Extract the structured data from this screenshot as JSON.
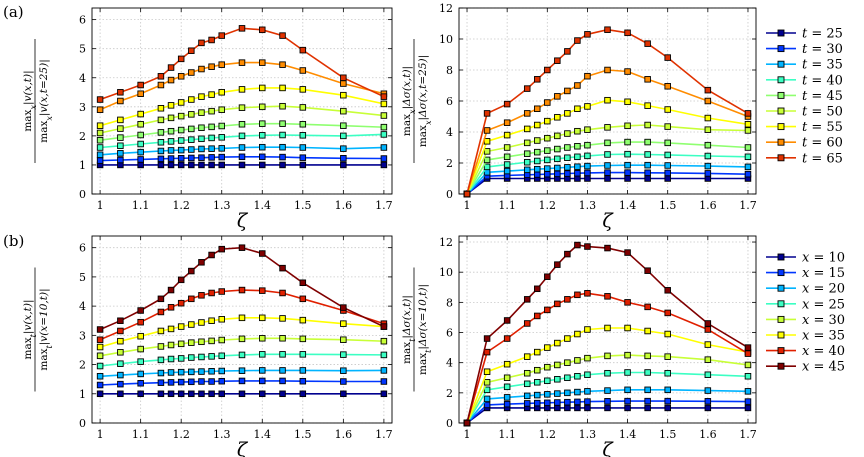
{
  "figure": {
    "panel_labels": [
      "(a)",
      "(b)"
    ]
  },
  "chart_data": [
    {
      "type": "line",
      "panel": "a-left",
      "xlabel": "ζ",
      "ylabel_num": "max_x|v(x,t)|",
      "ylabel_den": "max_x|v(x,t=25)|",
      "xlim": [
        0.98,
        1.72
      ],
      "ylim": [
        0,
        6.4
      ],
      "xticks": [
        1,
        1.1,
        1.2,
        1.3,
        1.4,
        1.5,
        1.6,
        1.7
      ],
      "xtick_labels": [
        "1",
        "1.1",
        "1.2",
        "1.3",
        "1.4",
        "1.5",
        "1.6",
        "1.7"
      ],
      "yticks": [
        0,
        1,
        2,
        3,
        4,
        5,
        6
      ],
      "ytick_labels": [
        "0",
        "1",
        "2",
        "3",
        "4",
        "5",
        "6"
      ],
      "grid": true,
      "x": [
        1,
        1.05,
        1.1,
        1.15,
        1.175,
        1.2,
        1.225,
        1.25,
        1.275,
        1.3,
        1.35,
        1.4,
        1.45,
        1.5,
        1.6,
        1.7
      ],
      "series": [
        {
          "name": "t=25",
          "color": "#00008f",
          "values": [
            1,
            1,
            1,
            1,
            1,
            1,
            1,
            1,
            1,
            1,
            1,
            1,
            1,
            1,
            1,
            1
          ]
        },
        {
          "name": "t=30",
          "color": "#0036ff",
          "values": [
            1.15,
            1.17,
            1.19,
            1.21,
            1.22,
            1.23,
            1.24,
            1.25,
            1.26,
            1.27,
            1.28,
            1.28,
            1.27,
            1.25,
            1.23,
            1.22
          ]
        },
        {
          "name": "t=35",
          "color": "#00b4ff",
          "values": [
            1.35,
            1.4,
            1.44,
            1.48,
            1.5,
            1.51,
            1.53,
            1.55,
            1.56,
            1.57,
            1.6,
            1.61,
            1.61,
            1.6,
            1.56,
            1.6
          ]
        },
        {
          "name": "t=40",
          "color": "#3cffc3",
          "values": [
            1.6,
            1.66,
            1.72,
            1.78,
            1.81,
            1.84,
            1.87,
            1.9,
            1.93,
            1.95,
            2.0,
            2.02,
            2.03,
            2.02,
            2.0,
            2.05
          ]
        },
        {
          "name": "t=45",
          "color": "#8fff70",
          "values": [
            1.85,
            1.94,
            2.03,
            2.12,
            2.16,
            2.2,
            2.24,
            2.28,
            2.31,
            2.34,
            2.4,
            2.42,
            2.42,
            2.4,
            2.35,
            2.3
          ]
        },
        {
          "name": "t=50",
          "color": "#c8ff37",
          "values": [
            2.1,
            2.25,
            2.4,
            2.55,
            2.62,
            2.68,
            2.74,
            2.8,
            2.85,
            2.9,
            2.97,
            3.0,
            3.02,
            2.98,
            2.85,
            2.7
          ]
        },
        {
          "name": "t=55",
          "color": "#ffff00",
          "values": [
            2.35,
            2.55,
            2.75,
            2.95,
            3.05,
            3.15,
            3.25,
            3.35,
            3.42,
            3.5,
            3.6,
            3.65,
            3.65,
            3.6,
            3.4,
            3.1
          ]
        },
        {
          "name": "t=60",
          "color": "#ff8c00",
          "values": [
            2.9,
            3.2,
            3.45,
            3.75,
            3.92,
            4.05,
            4.18,
            4.3,
            4.38,
            4.45,
            4.52,
            4.52,
            4.45,
            4.25,
            3.8,
            3.45
          ]
        },
        {
          "name": "t=65",
          "color": "#e03200",
          "values": [
            3.25,
            3.5,
            3.75,
            4.05,
            4.35,
            4.65,
            4.93,
            5.2,
            5.3,
            5.45,
            5.7,
            5.65,
            5.45,
            4.95,
            4.0,
            3.35
          ]
        }
      ]
    },
    {
      "type": "line",
      "panel": "a-right",
      "xlabel": "ζ",
      "ylabel_num": "max_x|Δσ(x,t)|",
      "ylabel_den": "max_x|Δσ(x,t=25)|",
      "xlim": [
        0.98,
        1.72
      ],
      "ylim": [
        0,
        12
      ],
      "xticks": [
        1,
        1.1,
        1.2,
        1.3,
        1.4,
        1.5,
        1.6,
        1.7
      ],
      "xtick_labels": [
        "1",
        "1.1",
        "1.2",
        "1.3",
        "1.4",
        "1.5",
        "1.6",
        "1.7"
      ],
      "yticks": [
        0,
        2,
        4,
        6,
        8,
        10,
        12
      ],
      "ytick_labels": [
        "0",
        "2",
        "4",
        "6",
        "8",
        "10",
        "12"
      ],
      "grid": true,
      "x": [
        1,
        1.05,
        1.1,
        1.15,
        1.175,
        1.2,
        1.225,
        1.25,
        1.275,
        1.3,
        1.35,
        1.4,
        1.45,
        1.5,
        1.6,
        1.7
      ],
      "series": [
        {
          "name": "t=25",
          "color": "#00008f",
          "values": [
            0,
            1,
            1,
            1,
            1,
            1,
            1,
            1,
            1,
            1,
            1,
            1,
            1,
            1,
            1,
            1
          ]
        },
        {
          "name": "t=30",
          "color": "#0036ff",
          "values": [
            0,
            1.15,
            1.2,
            1.24,
            1.26,
            1.28,
            1.3,
            1.32,
            1.34,
            1.36,
            1.38,
            1.38,
            1.37,
            1.36,
            1.33,
            1.28
          ]
        },
        {
          "name": "t=35",
          "color": "#00b4ff",
          "values": [
            0,
            1.4,
            1.48,
            1.56,
            1.6,
            1.64,
            1.68,
            1.72,
            1.76,
            1.8,
            1.84,
            1.86,
            1.86,
            1.84,
            1.8,
            1.75
          ]
        },
        {
          "name": "t=40",
          "color": "#3cffc3",
          "values": [
            0,
            1.75,
            1.9,
            2.05,
            2.13,
            2.2,
            2.27,
            2.34,
            2.4,
            2.46,
            2.55,
            2.57,
            2.55,
            2.52,
            2.45,
            2.4
          ]
        },
        {
          "name": "t=45",
          "color": "#8fff70",
          "values": [
            0,
            2.2,
            2.4,
            2.6,
            2.7,
            2.8,
            2.9,
            3.0,
            3.08,
            3.15,
            3.3,
            3.35,
            3.35,
            3.3,
            3.15,
            3.0
          ]
        },
        {
          "name": "t=50",
          "color": "#c8ff37",
          "values": [
            0,
            2.75,
            3.0,
            3.3,
            3.45,
            3.6,
            3.75,
            3.9,
            4.05,
            4.15,
            4.3,
            4.4,
            4.45,
            4.35,
            4.15,
            4.1
          ]
        },
        {
          "name": "t=55",
          "color": "#ffff00",
          "values": [
            0,
            3.4,
            3.8,
            4.2,
            4.45,
            4.7,
            4.95,
            5.2,
            5.5,
            5.65,
            6.05,
            5.95,
            5.7,
            5.45,
            4.9,
            4.5
          ]
        },
        {
          "name": "t=60",
          "color": "#ff8c00",
          "values": [
            0,
            4.1,
            4.6,
            5.2,
            5.5,
            5.9,
            6.3,
            6.65,
            7.0,
            7.6,
            8.0,
            7.9,
            7.4,
            6.95,
            6.0,
            5.0
          ]
        },
        {
          "name": "t=65",
          "color": "#e03200",
          "values": [
            0,
            5.2,
            5.8,
            6.8,
            7.4,
            8.0,
            8.6,
            9.2,
            9.9,
            10.3,
            10.6,
            10.4,
            9.7,
            8.8,
            6.7,
            5.2
          ]
        }
      ]
    },
    {
      "type": "line",
      "panel": "b-left",
      "xlabel": "ζ",
      "ylabel_num": "max_t|v(x,t)|",
      "ylabel_den": "max_t|v(x=10,t)|",
      "xlim": [
        0.98,
        1.72
      ],
      "ylim": [
        0,
        6.4
      ],
      "xticks": [
        1,
        1.1,
        1.2,
        1.3,
        1.4,
        1.5,
        1.6,
        1.7
      ],
      "xtick_labels": [
        "1",
        "1.1",
        "1.2",
        "1.3",
        "1.4",
        "1.5",
        "1.6",
        "1.7"
      ],
      "yticks": [
        0,
        1,
        2,
        3,
        4,
        5,
        6
      ],
      "ytick_labels": [
        "0",
        "1",
        "2",
        "3",
        "4",
        "5",
        "6"
      ],
      "grid": true,
      "x": [
        1,
        1.05,
        1.1,
        1.15,
        1.175,
        1.2,
        1.225,
        1.25,
        1.275,
        1.3,
        1.35,
        1.4,
        1.45,
        1.5,
        1.6,
        1.7
      ],
      "series": [
        {
          "name": "x=10",
          "color": "#00008f",
          "values": [
            1,
            1,
            1,
            1,
            1,
            1,
            1,
            1,
            1,
            1,
            1,
            1,
            1,
            1,
            1,
            1
          ]
        },
        {
          "name": "x=15",
          "color": "#0036ff",
          "values": [
            1.3,
            1.33,
            1.36,
            1.38,
            1.39,
            1.4,
            1.41,
            1.42,
            1.42,
            1.43,
            1.44,
            1.44,
            1.44,
            1.43,
            1.42,
            1.42
          ]
        },
        {
          "name": "x=20",
          "color": "#00b4ff",
          "values": [
            1.6,
            1.64,
            1.68,
            1.71,
            1.73,
            1.74,
            1.75,
            1.76,
            1.77,
            1.78,
            1.79,
            1.8,
            1.8,
            1.8,
            1.79,
            1.8
          ]
        },
        {
          "name": "x=25",
          "color": "#3cffc3",
          "values": [
            1.95,
            2.03,
            2.1,
            2.16,
            2.19,
            2.21,
            2.24,
            2.26,
            2.28,
            2.3,
            2.33,
            2.35,
            2.35,
            2.35,
            2.34,
            2.33
          ]
        },
        {
          "name": "x=30",
          "color": "#c8ff37",
          "values": [
            2.3,
            2.42,
            2.53,
            2.62,
            2.67,
            2.71,
            2.75,
            2.78,
            2.81,
            2.84,
            2.88,
            2.9,
            2.9,
            2.88,
            2.85,
            2.8
          ]
        },
        {
          "name": "x=35",
          "color": "#ffff00",
          "values": [
            2.6,
            2.8,
            2.97,
            3.15,
            3.22,
            3.3,
            3.37,
            3.44,
            3.5,
            3.55,
            3.6,
            3.6,
            3.58,
            3.52,
            3.4,
            3.3
          ]
        },
        {
          "name": "x=40",
          "color": "#e02000",
          "values": [
            2.85,
            3.15,
            3.45,
            3.8,
            3.96,
            4.1,
            4.25,
            4.37,
            4.45,
            4.5,
            4.55,
            4.53,
            4.45,
            4.25,
            3.85,
            3.4
          ]
        },
        {
          "name": "x=45",
          "color": "#800000",
          "values": [
            3.2,
            3.5,
            3.85,
            4.25,
            4.55,
            4.9,
            5.2,
            5.5,
            5.75,
            5.95,
            6.0,
            5.8,
            5.3,
            4.8,
            3.95,
            3.3
          ]
        }
      ]
    },
    {
      "type": "line",
      "panel": "b-right",
      "xlabel": "ζ",
      "ylabel_num": "max_t|Δσ(x,t)|",
      "ylabel_den": "max_t|Δσ(x=10,t)|",
      "xlim": [
        0.98,
        1.72
      ],
      "ylim": [
        0,
        12.4
      ],
      "xticks": [
        1,
        1.1,
        1.2,
        1.3,
        1.4,
        1.5,
        1.6,
        1.7
      ],
      "xtick_labels": [
        "1",
        "1.1",
        "1.2",
        "1.3",
        "1.4",
        "1.5",
        "1.6",
        "1.7"
      ],
      "yticks": [
        0,
        2,
        4,
        6,
        8,
        10,
        12
      ],
      "ytick_labels": [
        "0",
        "2",
        "4",
        "6",
        "8",
        "10",
        "12"
      ],
      "grid": true,
      "x": [
        1,
        1.05,
        1.1,
        1.15,
        1.175,
        1.2,
        1.225,
        1.25,
        1.275,
        1.3,
        1.35,
        1.4,
        1.45,
        1.5,
        1.6,
        1.7
      ],
      "series": [
        {
          "name": "x=10",
          "color": "#00008f",
          "values": [
            0,
            1,
            1,
            1,
            1,
            1,
            1,
            1,
            1,
            1,
            1,
            1,
            1,
            1,
            1,
            1
          ]
        },
        {
          "name": "x=15",
          "color": "#0036ff",
          "values": [
            0,
            1.2,
            1.25,
            1.3,
            1.32,
            1.34,
            1.36,
            1.38,
            1.4,
            1.42,
            1.44,
            1.45,
            1.45,
            1.45,
            1.44,
            1.42
          ]
        },
        {
          "name": "x=20",
          "color": "#00b4ff",
          "values": [
            0,
            1.6,
            1.7,
            1.8,
            1.85,
            1.9,
            1.95,
            2.0,
            2.05,
            2.1,
            2.15,
            2.2,
            2.2,
            2.2,
            2.15,
            2.1
          ]
        },
        {
          "name": "x=25",
          "color": "#3cffc3",
          "values": [
            0,
            2.2,
            2.4,
            2.6,
            2.7,
            2.8,
            2.9,
            3.0,
            3.1,
            3.2,
            3.3,
            3.35,
            3.35,
            3.3,
            3.2,
            3.1
          ]
        },
        {
          "name": "x=30",
          "color": "#c8ff37",
          "values": [
            0,
            2.7,
            3.0,
            3.3,
            3.5,
            3.7,
            3.85,
            4.0,
            4.15,
            4.3,
            4.45,
            4.5,
            4.45,
            4.4,
            4.2,
            3.85
          ]
        },
        {
          "name": "x=35",
          "color": "#ffff00",
          "values": [
            0,
            3.4,
            3.9,
            4.4,
            4.7,
            5.0,
            5.3,
            5.6,
            5.9,
            6.2,
            6.3,
            6.3,
            6.1,
            5.9,
            5.2,
            4.7
          ]
        },
        {
          "name": "x=40",
          "color": "#e02000",
          "values": [
            0,
            4.7,
            5.6,
            6.6,
            7.1,
            7.5,
            7.9,
            8.2,
            8.5,
            8.6,
            8.4,
            8.0,
            7.7,
            7.3,
            6.2,
            4.6
          ]
        },
        {
          "name": "x=45",
          "color": "#800000",
          "values": [
            0,
            5.6,
            6.8,
            8.2,
            8.9,
            9.7,
            10.5,
            11.2,
            11.8,
            11.7,
            11.6,
            11.3,
            10.1,
            8.8,
            6.6,
            5.0
          ]
        }
      ]
    }
  ]
}
